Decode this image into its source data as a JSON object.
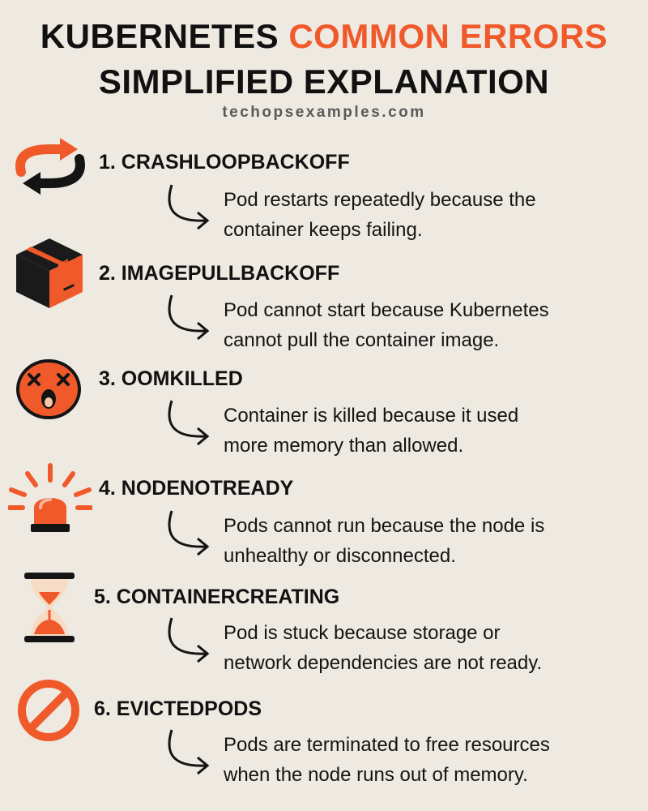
{
  "header": {
    "title_part1": "KUBERNETES",
    "title_accent": "COMMON ERRORS",
    "title_line2": "SIMPLIFIED EXPLANATION",
    "site": "techopsexamples.com"
  },
  "colors": {
    "accent": "#f05a2a",
    "background": "#eee9e1",
    "text": "#111111"
  },
  "items": [
    {
      "heading": "1. CRASHLOOPBACKOFF",
      "line1": "Pod restarts repeatedly because the",
      "line2": "container keeps failing.",
      "icon": "restart-loop-icon"
    },
    {
      "heading": "2. IMAGEPULLBACKOFF",
      "line1": "Pod cannot start because Kubernetes",
      "line2": "cannot pull the container image.",
      "icon": "package-box-icon"
    },
    {
      "heading": "3. OOMKILLED",
      "line1": "Container is killed because it used",
      "line2": "more memory than allowed.",
      "icon": "dead-face-icon"
    },
    {
      "heading": "4. NODENOTREADY",
      "line1": "Pods cannot run because the node is",
      "line2": "unhealthy or disconnected.",
      "icon": "alarm-siren-icon"
    },
    {
      "heading": "5. CONTAINERCREATING",
      "line1": "Pod is stuck because storage or",
      "line2": "network dependencies are not ready.",
      "icon": "hourglass-icon"
    },
    {
      "heading": "6. EVICTEDPODS",
      "line1": "Pods are terminated to free resources",
      "line2": "when the node runs out of memory.",
      "icon": "prohibited-icon"
    }
  ]
}
